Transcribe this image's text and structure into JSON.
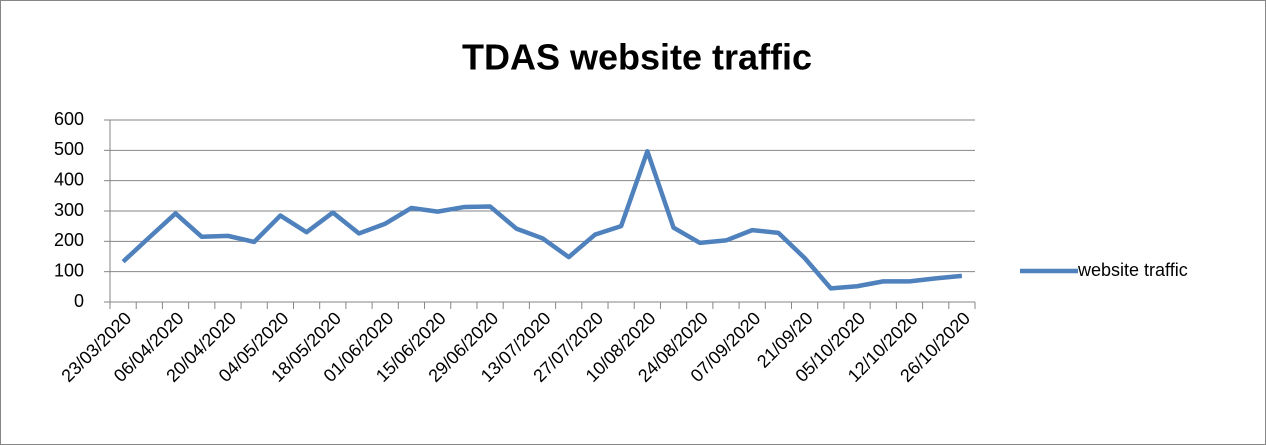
{
  "chart_data": {
    "type": "line",
    "title": "TDAS website traffic",
    "categories": [
      "23/03/2020",
      null,
      "06/04/2020",
      null,
      "20/04/2020",
      null,
      "04/05/2020",
      null,
      "18/05/2020",
      null,
      "01/06/2020",
      null,
      "15/06/2020",
      null,
      "29/06/2020",
      null,
      "13/07/2020",
      null,
      "27/07/2020",
      null,
      "10/08/2020",
      null,
      "24/08/2020",
      null,
      "07/09/2020",
      null,
      "21/09/20",
      null,
      "05/10/2020",
      null,
      "12/10/2020",
      null,
      "26/10/2020"
    ],
    "series": [
      {
        "name": "website traffic",
        "color": "#4f81bd",
        "values": [
          133,
          213,
          292,
          215,
          218,
          198,
          285,
          230,
          295,
          226,
          258,
          310,
          298,
          313,
          315,
          242,
          210,
          148,
          222,
          250,
          497,
          245,
          195,
          203,
          237,
          228,
          145,
          45,
          52,
          68,
          68,
          78,
          86
        ]
      }
    ],
    "ylim": [
      0,
      600
    ],
    "yticks": [
      0,
      100,
      200,
      300,
      400,
      500,
      600
    ],
    "grid": true,
    "legend": "right"
  }
}
